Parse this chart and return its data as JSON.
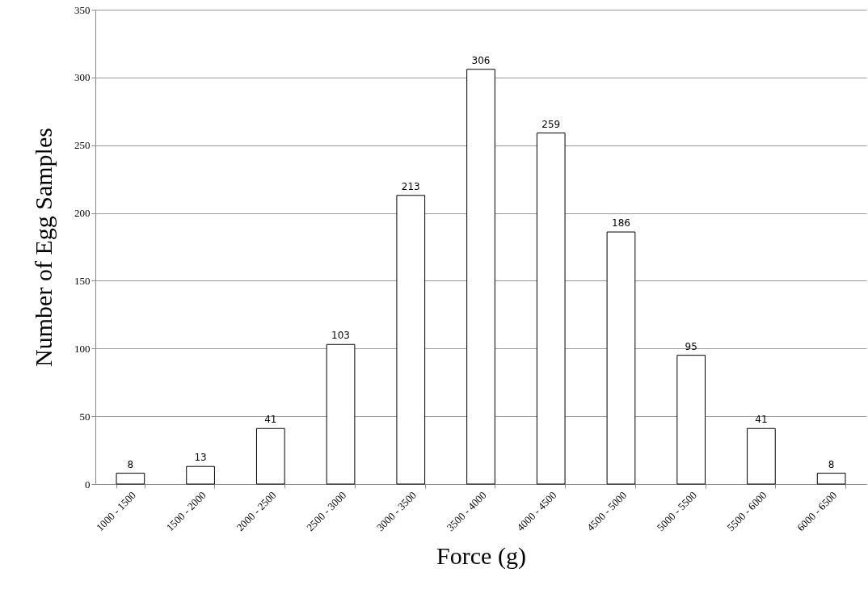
{
  "chart_data": {
    "type": "bar",
    "xlabel": "Force (g)",
    "ylabel": "Number of Egg Samples",
    "categories": [
      "1000 - 1500",
      "1500 - 2000",
      "2000 - 2500",
      "2500 - 3000",
      "3000 - 3500",
      "3500 - 4000",
      "4000 - 4500",
      "4500 - 5000",
      "5000 - 5500",
      "5500 - 6000",
      "6000 - 6500"
    ],
    "values": [
      8,
      13,
      41,
      103,
      213,
      306,
      259,
      186,
      95,
      41,
      8
    ],
    "color": "#ffffff",
    "ylim": [
      0,
      350
    ],
    "yticks": [
      0,
      50,
      100,
      150,
      200,
      250,
      300,
      350
    ],
    "grid": "y",
    "data_labels": true
  }
}
